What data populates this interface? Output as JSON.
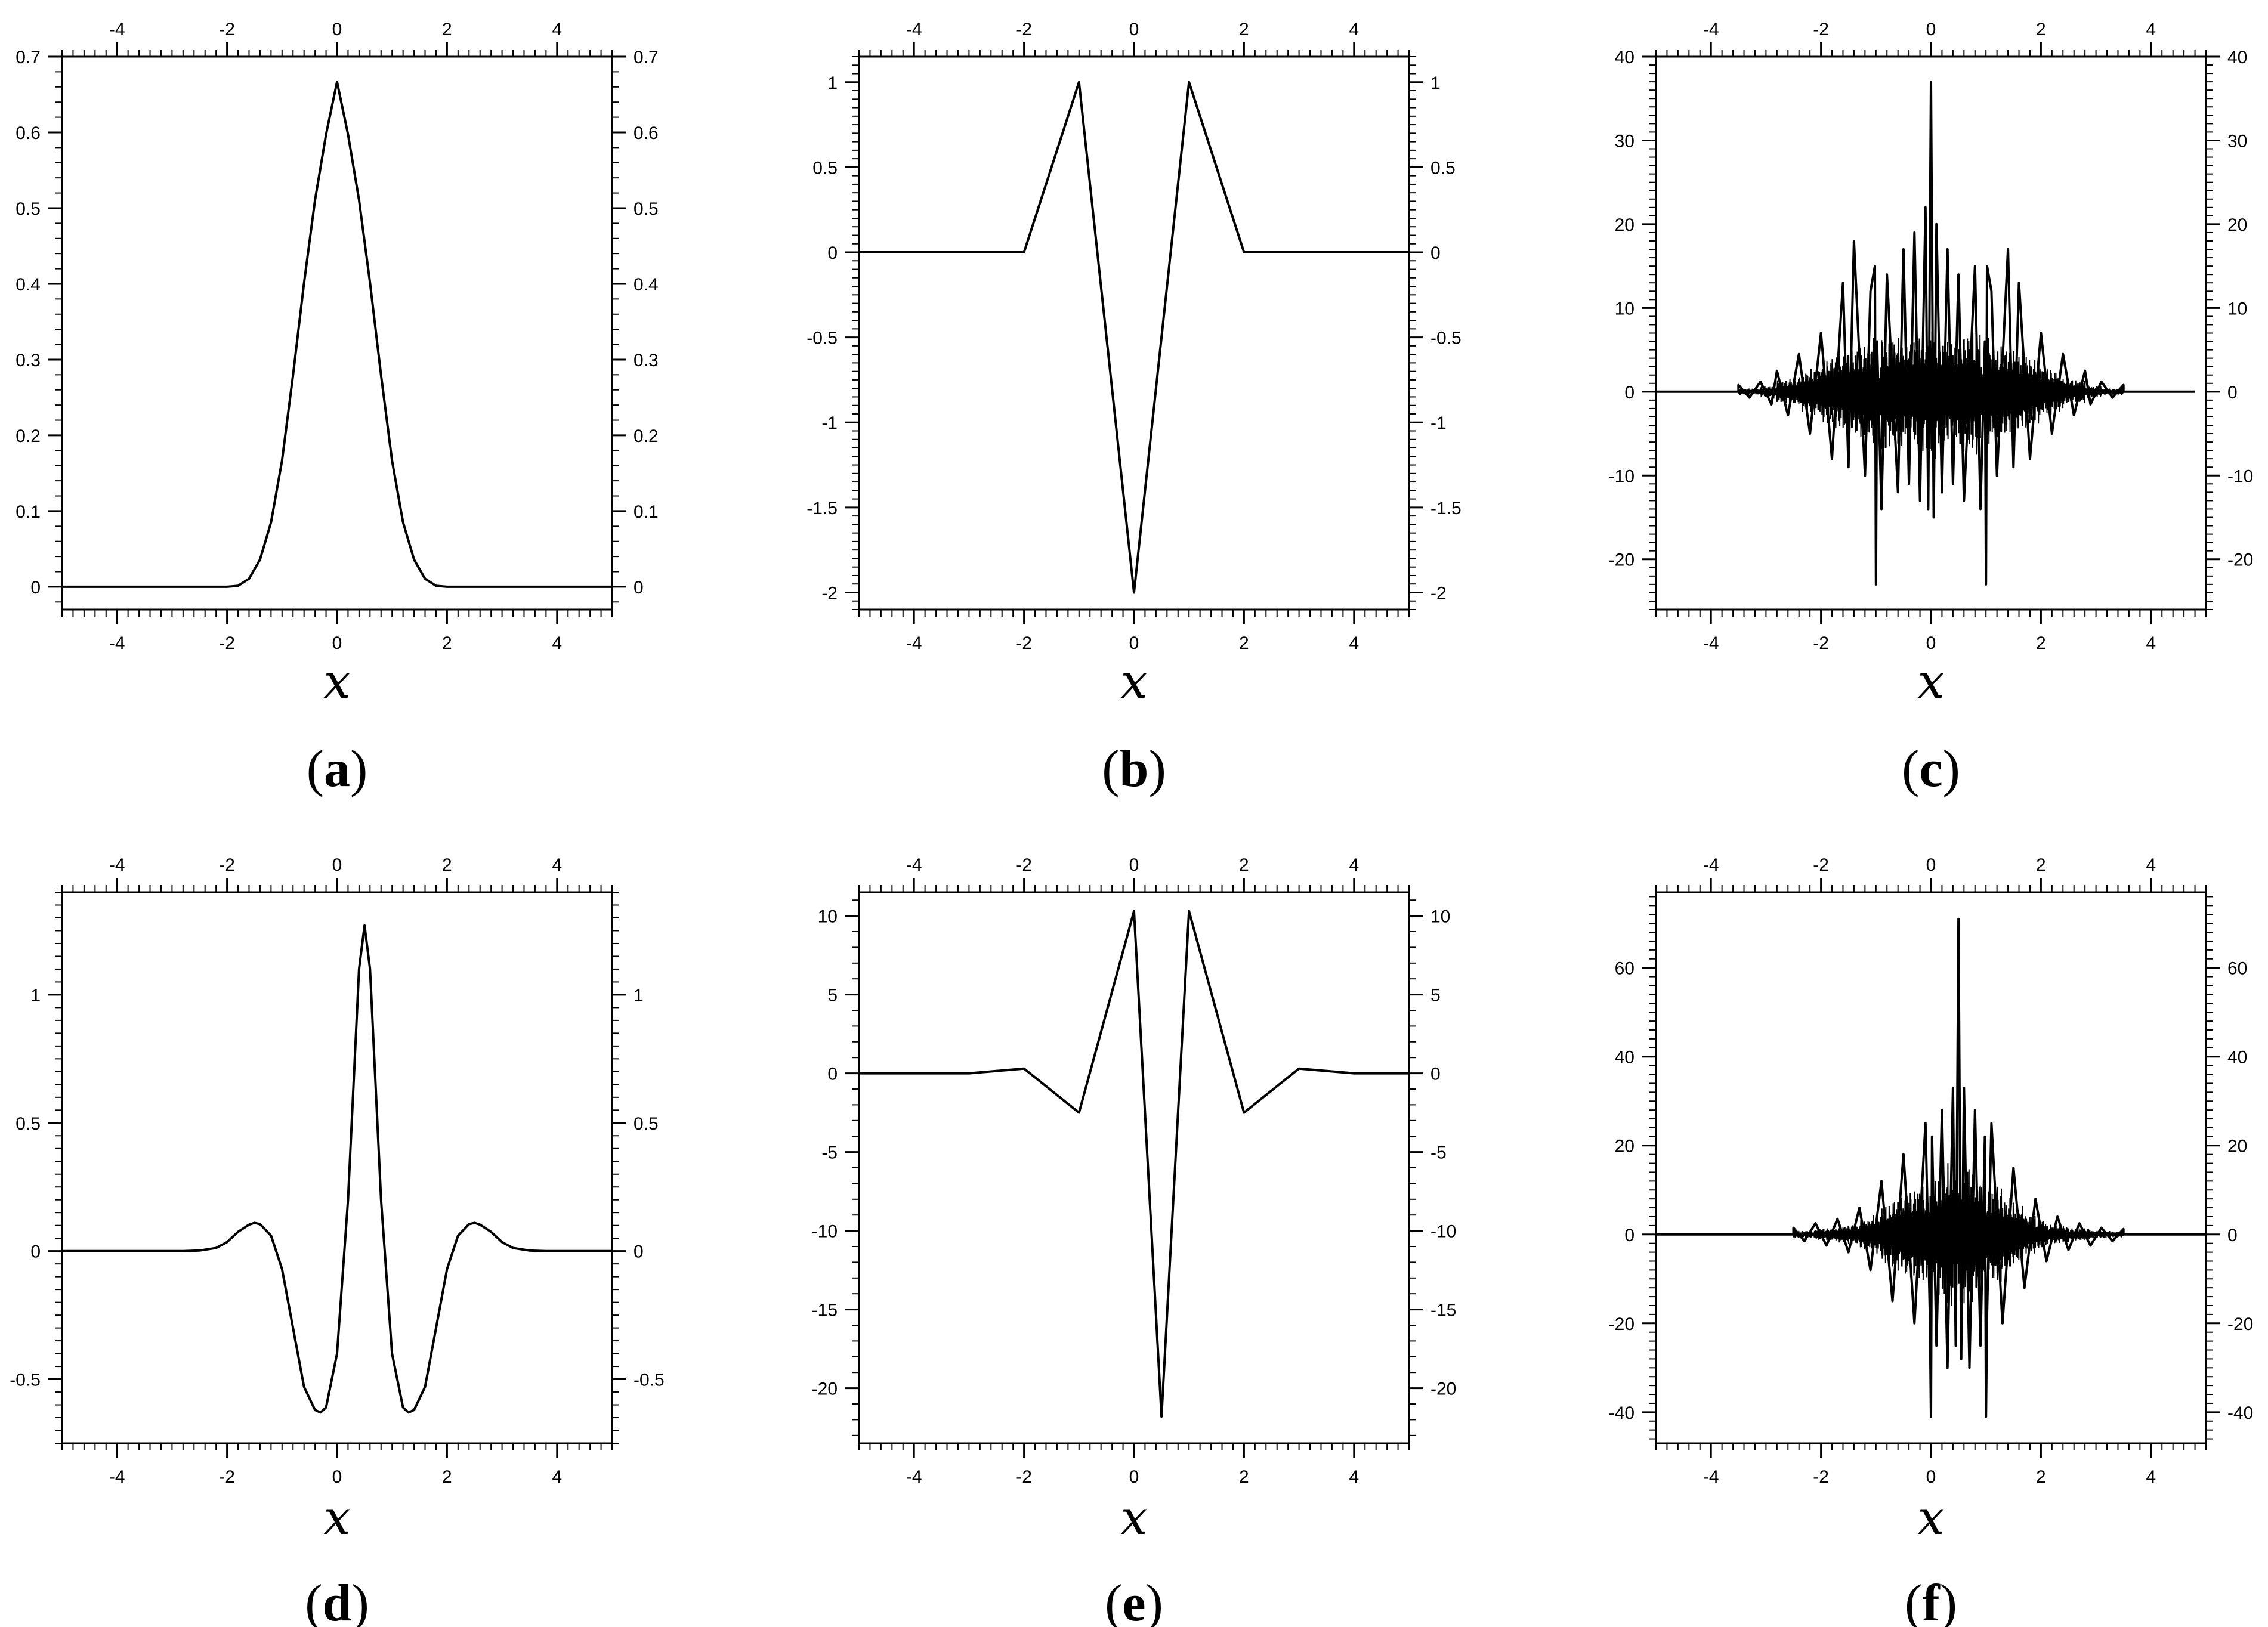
{
  "figure": {
    "panel_labels": [
      "a",
      "b",
      "c",
      "d",
      "e",
      "f"
    ]
  },
  "chart_data": [
    {
      "panel": "a",
      "type": "line",
      "xlabel": "x",
      "xlim": [
        -5,
        5
      ],
      "ylim": [
        -0.03,
        0.7
      ],
      "xticks": [
        -4,
        -2,
        0,
        2,
        4
      ],
      "yticks": [
        0,
        0.1,
        0.2,
        0.3,
        0.4,
        0.5,
        0.6,
        0.7
      ],
      "ytick_labels": [
        "0",
        "0.1",
        "0.2",
        "0.3",
        "0.4",
        "0.5",
        "0.6",
        "0.7"
      ],
      "grid": false,
      "series": [
        {
          "x": [
            -5,
            -2,
            -1.8,
            -1.6,
            -1.4,
            -1.2,
            -1.0,
            -0.8,
            -0.6,
            -0.4,
            -0.2,
            0,
            0.2,
            0.4,
            0.6,
            0.8,
            1.0,
            1.2,
            1.4,
            1.6,
            1.8,
            2,
            5
          ],
          "y": [
            0,
            0,
            0.0013,
            0.0107,
            0.036,
            0.0853,
            0.1667,
            0.2793,
            0.4013,
            0.5107,
            0.5973,
            0.6667,
            0.5973,
            0.5107,
            0.4013,
            0.2793,
            0.1667,
            0.0853,
            0.036,
            0.0107,
            0.0013,
            0,
            0
          ]
        }
      ]
    },
    {
      "panel": "b",
      "type": "line",
      "xlabel": "x",
      "xlim": [
        -5,
        5
      ],
      "ylim": [
        -2.1,
        1.15
      ],
      "xticks": [
        -4,
        -2,
        0,
        2,
        4
      ],
      "yticks": [
        -2,
        -1.5,
        -1,
        -0.5,
        0,
        0.5,
        1
      ],
      "ytick_labels": [
        "-2",
        "-1.5",
        "-1",
        "-0.5",
        "0",
        "0.5",
        "1"
      ],
      "grid": false,
      "series": [
        {
          "x": [
            -5,
            -2,
            -1,
            0,
            1,
            2,
            5
          ],
          "y": [
            0,
            0,
            1,
            -2,
            1,
            0,
            0
          ]
        }
      ]
    },
    {
      "panel": "c",
      "type": "line",
      "xlabel": "x",
      "xlim": [
        -5,
        5
      ],
      "ylim": [
        -26,
        40
      ],
      "xticks": [
        -4,
        -2,
        0,
        2,
        4
      ],
      "yticks": [
        -20,
        -10,
        0,
        10,
        20,
        30,
        40
      ],
      "ytick_labels": [
        "-20",
        "-10",
        "0",
        "10",
        "20",
        "30",
        "40"
      ],
      "grid": false,
      "series": [
        {
          "x": [
            -5,
            -3.5,
            -3.5,
            -3.3,
            -3.1,
            -2.9,
            -2.8,
            -2.6,
            -2.4,
            -2.2,
            -2.0,
            -1.8,
            -1.6,
            -1.5,
            -1.4,
            -1.2,
            -1.1,
            -1.02,
            -1.0,
            -0.98,
            -0.9,
            -0.8,
            -0.6,
            -0.5,
            -0.4,
            -0.3,
            -0.2,
            -0.1,
            -0.05,
            0,
            0.05,
            0.1,
            0.2,
            0.3,
            0.4,
            0.5,
            0.6,
            0.8,
            0.9,
            0.98,
            1.0,
            1.02,
            1.1,
            1.2,
            1.4,
            1.5,
            1.6,
            1.8,
            2.0,
            2.2,
            2.4,
            2.6,
            2.8,
            2.9,
            3.1,
            3.3,
            3.5,
            3.5,
            4.8
          ],
          "y": [
            0,
            0,
            0.8,
            -0.7,
            1.2,
            -1.5,
            2.5,
            -2.8,
            4.5,
            -5,
            7,
            -8,
            13,
            -9,
            18,
            -10,
            12,
            15,
            -23,
            6,
            -14,
            14,
            -12,
            17,
            -11,
            19,
            -13,
            22,
            -14,
            37,
            -15,
            20,
            -12,
            17,
            -11,
            14,
            -13,
            15,
            -14,
            6,
            -23,
            15,
            12,
            -10,
            17,
            -9,
            13,
            -8,
            7,
            -5,
            4.5,
            -2.8,
            2.5,
            -1.5,
            1.2,
            -0.7,
            0.8,
            0,
            0
          ]
        }
      ]
    },
    {
      "panel": "d",
      "type": "line",
      "xlabel": "x",
      "xlim": [
        -5,
        5
      ],
      "ylim": [
        -0.75,
        1.4
      ],
      "xticks": [
        -4,
        -2,
        0,
        2,
        4
      ],
      "yticks": [
        -0.5,
        0,
        0.5,
        1
      ],
      "ytick_labels": [
        "-0.5",
        "0",
        "0.5",
        "1"
      ],
      "grid": false,
      "series": [
        {
          "x": [
            -5,
            -2.8,
            -2.5,
            -2.2,
            -2.0,
            -1.8,
            -1.6,
            -1.5,
            -1.4,
            -1.2,
            -1.0,
            -0.8,
            -0.6,
            -0.4,
            -0.3,
            -0.2,
            0,
            0.2,
            0.4,
            0.5,
            0.6,
            0.8,
            1.0,
            1.2,
            1.3,
            1.4,
            1.6,
            1.8,
            2.0,
            2.2,
            2.4,
            2.5,
            2.6,
            2.8,
            3.0,
            3.2,
            3.5,
            3.8,
            5
          ],
          "y": [
            0,
            0,
            0.002,
            0.012,
            0.035,
            0.075,
            0.103,
            0.11,
            0.105,
            0.06,
            -0.07,
            -0.3,
            -0.53,
            -0.62,
            -0.63,
            -0.61,
            -0.4,
            0.2,
            1.1,
            1.27,
            1.1,
            0.2,
            -0.4,
            -0.61,
            -0.63,
            -0.62,
            -0.53,
            -0.3,
            -0.07,
            0.06,
            0.105,
            0.11,
            0.103,
            0.075,
            0.035,
            0.012,
            0.002,
            0,
            0
          ]
        }
      ]
    },
    {
      "panel": "e",
      "type": "line",
      "xlabel": "x",
      "xlim": [
        -5,
        5
      ],
      "ylim": [
        -23.5,
        11.5
      ],
      "xticks": [
        -4,
        -2,
        0,
        2,
        4
      ],
      "yticks": [
        -20,
        -15,
        -10,
        -5,
        0,
        5,
        10
      ],
      "ytick_labels": [
        "-20",
        "-15",
        "-10",
        "-5",
        "0",
        "5",
        "10"
      ],
      "grid": false,
      "series": [
        {
          "x": [
            -5,
            -3,
            -2,
            -1,
            0,
            0.5,
            1,
            2,
            3,
            4,
            5
          ],
          "y": [
            0,
            0,
            0.3,
            -2.5,
            10.3,
            -21.8,
            10.3,
            -2.5,
            0.3,
            0,
            0
          ]
        }
      ]
    },
    {
      "panel": "f",
      "type": "line",
      "xlabel": "x",
      "xlim": [
        -5,
        5
      ],
      "ylim": [
        -47,
        77
      ],
      "xticks": [
        -4,
        -2,
        0,
        2,
        4
      ],
      "yticks": [
        -40,
        -20,
        0,
        20,
        40,
        60
      ],
      "ytick_labels": [
        "-40",
        "-20",
        "0",
        "20",
        "40",
        "60"
      ],
      "grid": false,
      "series": [
        {
          "x": [
            -5,
            -2.5,
            -2.5,
            -2.3,
            -2.1,
            -1.9,
            -1.7,
            -1.5,
            -1.3,
            -1.1,
            -0.9,
            -0.7,
            -0.5,
            -0.3,
            -0.1,
            -0.02,
            0,
            0.02,
            0.1,
            0.2,
            0.3,
            0.4,
            0.45,
            0.5,
            0.55,
            0.6,
            0.7,
            0.8,
            0.9,
            0.98,
            1.0,
            1.02,
            1.1,
            1.3,
            1.5,
            1.7,
            1.9,
            2.1,
            2.3,
            2.5,
            2.7,
            2.9,
            3.1,
            3.3,
            3.5,
            3.5,
            5
          ],
          "y": [
            0,
            0,
            1.5,
            -1.5,
            2.5,
            -2.5,
            3.5,
            -4,
            6,
            -8,
            12,
            -15,
            18,
            -20,
            25,
            -18,
            -41,
            22,
            -25,
            28,
            -30,
            33,
            -25,
            71,
            -28,
            33,
            -30,
            28,
            -25,
            22,
            -41,
            -18,
            25,
            -20,
            15,
            -12,
            8,
            -6,
            4,
            -3.5,
            2.5,
            -2.5,
            1.5,
            -1.5,
            1.2,
            0,
            0
          ]
        }
      ]
    }
  ]
}
